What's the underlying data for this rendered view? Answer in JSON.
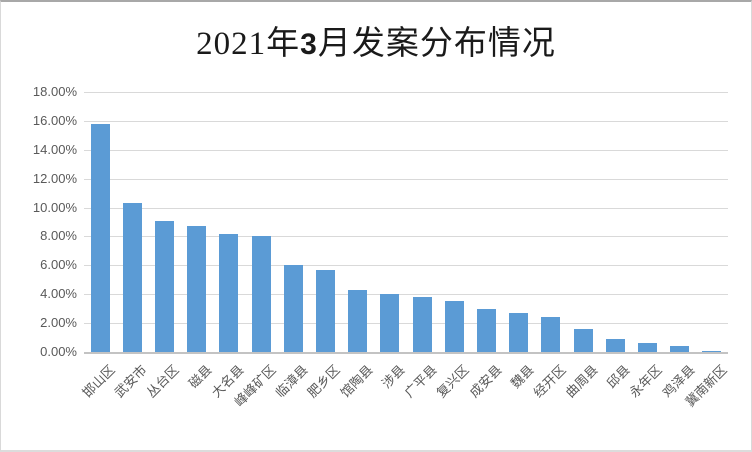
{
  "title": {
    "full": "2021年3月发案分布情况",
    "prefix": "2021年",
    "bold_part": "3",
    "suffix": "月发案分布情况"
  },
  "chart_data": {
    "type": "bar",
    "title": "2021年3月发案分布情况",
    "categories": [
      "邯山区",
      "武安市",
      "丛台区",
      "磁县",
      "大名县",
      "峰峰矿区",
      "临漳县",
      "肥乡区",
      "馆陶县",
      "涉县",
      "广平县",
      "复兴区",
      "成安县",
      "魏县",
      "经开区",
      "曲周县",
      "邱县",
      "永年区",
      "鸡泽县",
      "冀南新区"
    ],
    "values": [
      15.8,
      10.3,
      9.1,
      8.7,
      8.2,
      8.0,
      6.0,
      5.7,
      4.3,
      4.0,
      3.8,
      3.5,
      3.0,
      2.7,
      2.4,
      1.6,
      0.9,
      0.6,
      0.4,
      0.1
    ],
    "unit": "%",
    "xlabel": "",
    "ylabel": "",
    "ylim": [
      0,
      18
    ],
    "ytick_step": 2,
    "ytick_labels": [
      "0.00%",
      "2.00%",
      "4.00%",
      "6.00%",
      "8.00%",
      "10.00%",
      "12.00%",
      "14.00%",
      "16.00%",
      "18.00%"
    ],
    "grid": true,
    "legend": false,
    "x_label_rotation_deg": 45,
    "bar_color": "#5b9bd5",
    "gridline_color": "#d9d9d9",
    "axis_line_color": "#c3c3c3",
    "tick_label_color": "#595959"
  }
}
